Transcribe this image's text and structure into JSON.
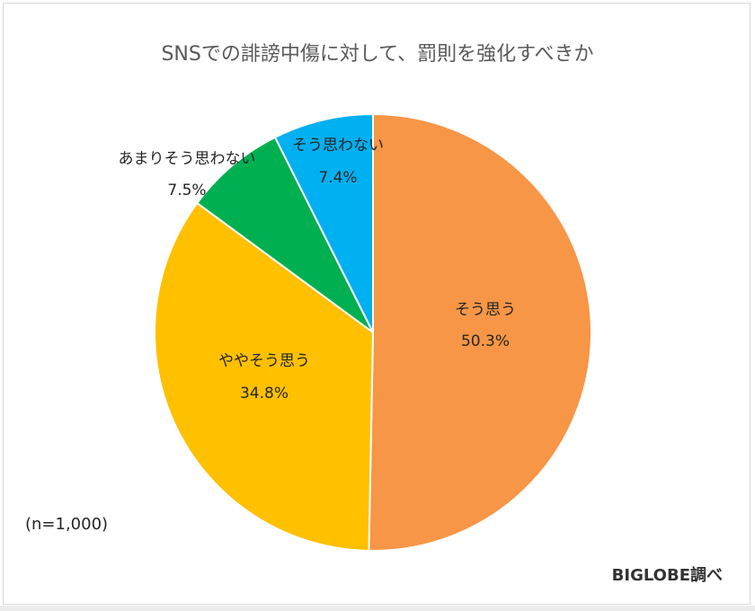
{
  "chart_data": {
    "type": "pie",
    "title": "SNSでの誹謗中傷に対して、罰則を強化すべきか",
    "slices": [
      {
        "label": "そう思う",
        "value": 50.3,
        "value_label": "50.3%",
        "color": "#F79646"
      },
      {
        "label": "ややそう思う",
        "value": 34.8,
        "value_label": "34.8%",
        "color": "#FFC000"
      },
      {
        "label": "あまりそう思わない",
        "value": 7.5,
        "value_label": "7.5%",
        "color": "#00B050"
      },
      {
        "label": "そう思わない",
        "value": 7.4,
        "value_label": "7.4%",
        "color": "#00B0F0"
      }
    ],
    "start": "12 o'clock",
    "direction": "clockwise",
    "note": "(n=1,000)",
    "source": "BIGLOBE調べ"
  }
}
